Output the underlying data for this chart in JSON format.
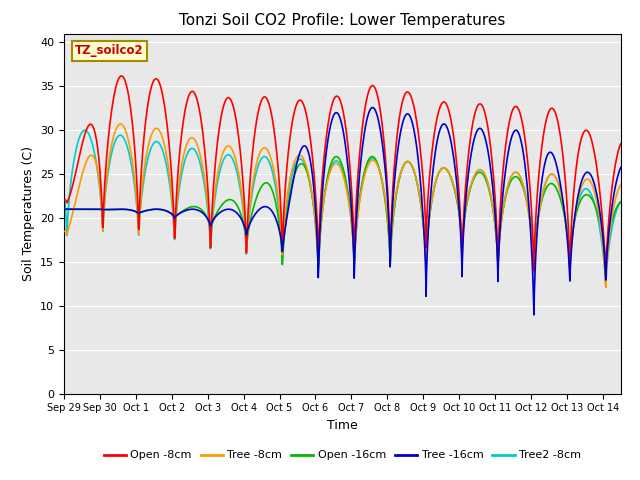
{
  "title": "Tonzi Soil CO2 Profile: Lower Temperatures",
  "xlabel": "Time",
  "ylabel": "Soil Temperatures (C)",
  "annotation": "TZ_soilco2",
  "ylim": [
    0,
    41
  ],
  "yticks": [
    0,
    5,
    10,
    15,
    20,
    25,
    30,
    35,
    40
  ],
  "background_color": "#e8e8e8",
  "fig_background": "#ffffff",
  "legend_labels": [
    "Open -8cm",
    "Tree -8cm",
    "Open -16cm",
    "Tree -16cm",
    "Tree2 -8cm"
  ],
  "legend_colors": [
    "#ff0000",
    "#ff9900",
    "#00bb00",
    "#0000cc",
    "#00cccc"
  ],
  "line_width": 1.2,
  "num_days": 15.5,
  "samples_per_day": 96,
  "open8_peaks": [
    22.0,
    35.0,
    37.0,
    35.0,
    34.0,
    33.5,
    34.0,
    33.0,
    34.5,
    35.5,
    33.5,
    33.0,
    33.0,
    32.5,
    32.5,
    28.0,
    29.5
  ],
  "open8_troughs": [
    22.0,
    17.5,
    17.0,
    16.0,
    15.0,
    14.5,
    15.0,
    14.5,
    14.5,
    14.0,
    16.5,
    14.0,
    13.5,
    13.0,
    13.0,
    12.0,
    14.0
  ],
  "tree8_peaks": [
    19.0,
    31.0,
    30.5,
    30.0,
    28.5,
    28.0,
    28.0,
    26.5,
    26.0,
    27.0,
    26.0,
    25.5,
    25.5,
    25.0,
    25.0,
    24.0,
    24.0
  ],
  "tree8_troughs": [
    18.0,
    17.5,
    17.0,
    16.5,
    16.0,
    15.0,
    15.0,
    14.0,
    14.0,
    15.0,
    14.0,
    17.0,
    14.0,
    13.0,
    13.0,
    11.0,
    13.0
  ],
  "open16_peaks": [
    21.0,
    21.0,
    21.0,
    21.0,
    21.5,
    22.5,
    25.0,
    27.0,
    27.0,
    27.0,
    26.0,
    25.5,
    25.0,
    24.5,
    23.5,
    22.0,
    22.0
  ],
  "open16_troughs": [
    21.0,
    21.0,
    20.5,
    20.0,
    18.5,
    16.5,
    14.0,
    13.0,
    14.0,
    14.0,
    14.0,
    16.5,
    14.5,
    14.5,
    14.5,
    14.5,
    14.5
  ],
  "tree16_peaks": [
    21.0,
    21.0,
    21.0,
    21.0,
    21.0,
    21.0,
    21.5,
    32.0,
    32.0,
    33.0,
    31.0,
    30.5,
    30.0,
    30.0,
    25.5,
    25.0,
    27.0
  ],
  "tree16_troughs": [
    21.0,
    21.0,
    20.5,
    20.0,
    19.0,
    18.0,
    16.0,
    12.0,
    12.0,
    14.0,
    10.5,
    13.0,
    12.5,
    7.5,
    12.0,
    12.0,
    12.0
  ],
  "tree2_8_peaks": [
    30.0,
    30.0,
    29.0,
    28.5,
    27.5,
    27.0,
    27.0,
    26.5,
    26.5,
    27.0,
    26.0,
    25.5,
    25.5,
    25.0,
    25.0,
    22.0,
    22.0
  ],
  "tree2_8_troughs": [
    17.0,
    17.5,
    17.0,
    16.5,
    15.5,
    15.0,
    14.5,
    14.0,
    14.0,
    14.5,
    14.0,
    16.5,
    14.0,
    13.5,
    13.5,
    11.5,
    13.0
  ],
  "peak_phase": 0.58,
  "trough_phase": 0.15,
  "sharpness": 3.5
}
